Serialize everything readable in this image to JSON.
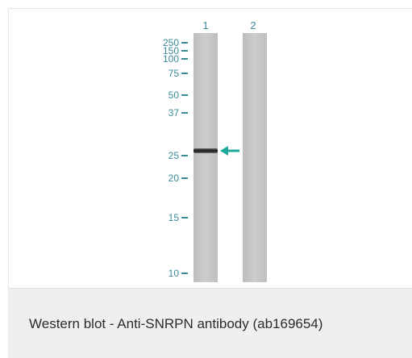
{
  "blot": {
    "lane_labels": [
      "1",
      "2"
    ],
    "markers": [
      "250",
      "150",
      "100",
      "75",
      "50",
      "37",
      "25",
      "20",
      "15",
      "10"
    ],
    "band": {
      "lane": "1",
      "marker_between": [
        "25",
        "37"
      ]
    },
    "colors": {
      "lane_fill": "#c9c9c9",
      "band": "#1e1e1e",
      "arrow": "#1fa89a",
      "label": "#3a8a9a",
      "caption_bg": "#efefef"
    },
    "arrow_icon": "arrow-left-icon"
  },
  "caption": {
    "text": "Western blot - Anti-SNRPN antibody (ab169654)"
  }
}
